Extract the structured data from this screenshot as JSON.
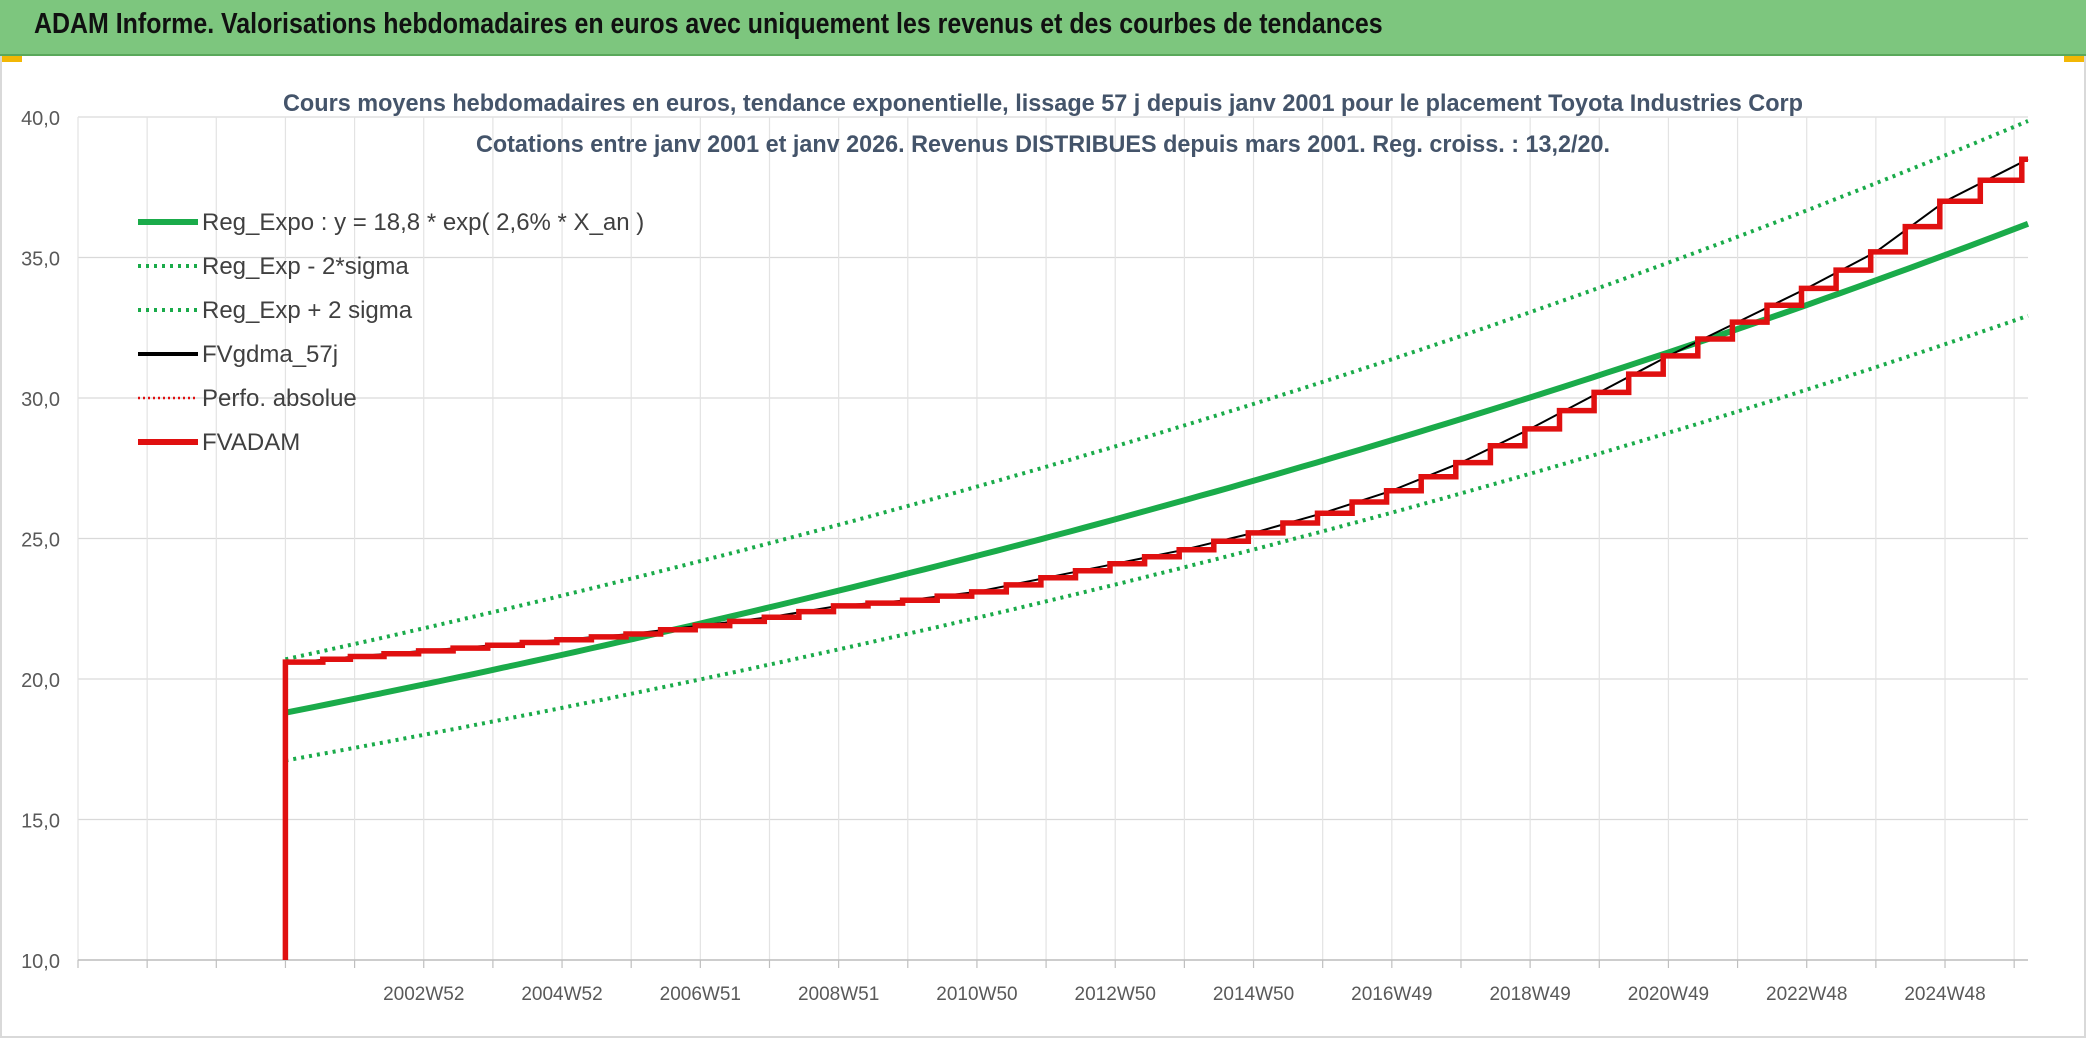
{
  "header": {
    "title": "ADAM Informe. Valorisations hebdomadaires en euros avec uniquement les revenus et des courbes de tendances"
  },
  "colors": {
    "banner": "#7dc67e",
    "trend": "#1aab4a",
    "actual": "#e01010",
    "smoothed": "#000000",
    "accent": "#f2b705"
  },
  "chart_data": {
    "type": "line",
    "title": "Cours moyens hebdomadaires en euros, tendance exponentielle, lissage 57 j depuis janv 2001 pour le placement Toyota Industries Corp",
    "subtitle": "Cotations entre janv 2001 et janv 2026. Revenus DISTRIBUES depuis mars 2001. Reg. croiss. : 13,2/20.",
    "xlabel": "",
    "ylabel": "",
    "ylim": [
      10,
      40
    ],
    "xlim": [
      1998.0,
      2026.2
    ],
    "y_ticks": [
      "10,0",
      "15,0",
      "20,0",
      "25,0",
      "30,0",
      "35,0",
      "40,0"
    ],
    "y_tick_values": [
      10,
      15,
      20,
      25,
      30,
      35,
      40
    ],
    "x_ticks": [
      "2002W52",
      "2004W52",
      "2006W51",
      "2008W51",
      "2010W50",
      "2012W50",
      "2014W50",
      "2016W49",
      "2018W49",
      "2020W49",
      "2022W48",
      "2024W48"
    ],
    "x_tick_values": [
      2003,
      2005,
      2007,
      2009,
      2011,
      2013,
      2015,
      2017,
      2019,
      2021,
      2023,
      2025
    ],
    "grid": true,
    "legend_position": "top-left",
    "legend": [
      {
        "label": "Reg_Expo : y = 18,8 * exp( 2,6% *  X_an )",
        "style": "solid-thick",
        "color": "#1aab4a"
      },
      {
        "label": "Reg_Exp - 2*sigma",
        "style": "dotted",
        "color": "#1aab4a"
      },
      {
        "label": "Reg_Exp + 2 sigma",
        "style": "dotted",
        "color": "#1aab4a"
      },
      {
        "label": "FVgdma_57j",
        "style": "solid",
        "color": "#000000"
      },
      {
        "label": "Perfo. absolue",
        "style": "dotted-thin",
        "color": "#e01010"
      },
      {
        "label": "FVADAM",
        "style": "solid-thick",
        "color": "#e01010"
      }
    ],
    "series": [
      {
        "name": "Reg_Expo",
        "x": [
          2001.0,
          2026.2
        ],
        "model": {
          "a": 18.8,
          "rate": 0.026
        }
      },
      {
        "name": "Reg_Exp - 2*sigma",
        "x": [
          2001.0,
          2026.2
        ],
        "model": {
          "a": 17.1,
          "rate": 0.026
        }
      },
      {
        "name": "Reg_Exp + 2 sigma",
        "x": [
          2001.0,
          2026.2
        ],
        "model": {
          "a": 20.7,
          "rate": 0.026
        }
      },
      {
        "name": "FVADAM",
        "x": [
          2001.0,
          2001.2,
          2002,
          2003,
          2004,
          2005,
          2006,
          2007,
          2008,
          2009,
          2010,
          2011,
          2012,
          2013,
          2014,
          2015,
          2016,
          2017,
          2018,
          2019,
          2020,
          2021,
          2022,
          2023,
          2024,
          2025,
          2026.2
        ],
        "values": [
          10.0,
          20.6,
          20.8,
          21.0,
          21.2,
          21.4,
          21.6,
          21.9,
          22.2,
          22.6,
          22.8,
          23.1,
          23.6,
          24.1,
          24.6,
          25.2,
          25.9,
          26.7,
          27.7,
          28.9,
          30.2,
          31.5,
          32.7,
          33.9,
          35.2,
          37.0,
          38.5
        ]
      }
    ]
  }
}
